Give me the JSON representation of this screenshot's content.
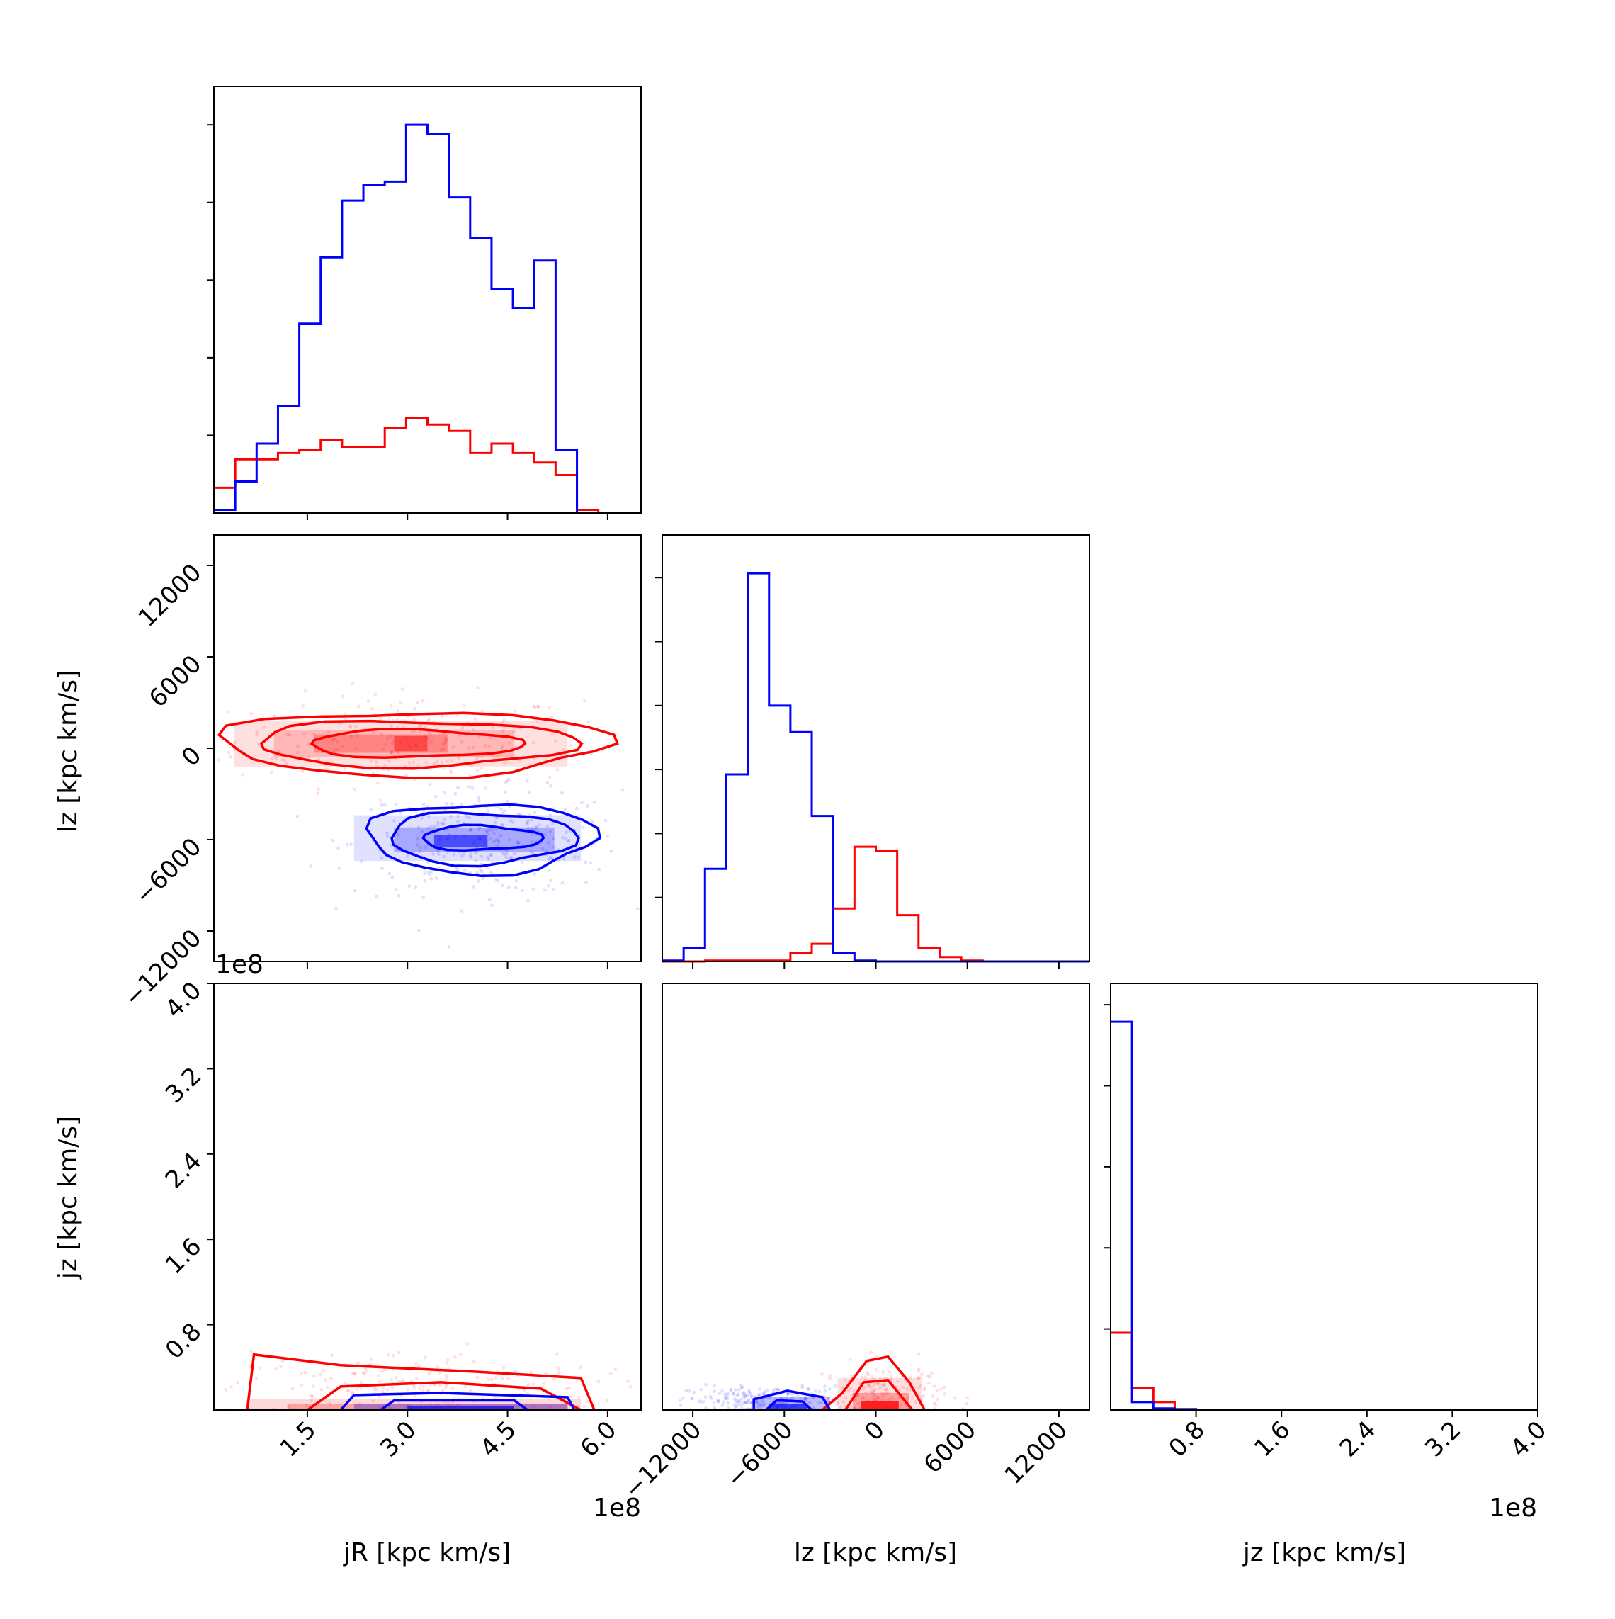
{
  "figure": {
    "axis_labels": {
      "jR": "jR [kpc km/s]",
      "lz": "lz [kpc km/s]",
      "jz": "jz [kpc km/s]"
    },
    "offset_text": "1e8",
    "ticks": {
      "jR": [
        "1.5",
        "3.0",
        "4.5",
        "6.0"
      ],
      "lz": [
        "−12000",
        "−6000",
        "0",
        "6000",
        "12000"
      ],
      "jz": [
        "0.8",
        "1.6",
        "2.4",
        "3.2",
        "4.0"
      ]
    }
  },
  "colors": {
    "blue": "#0000ff",
    "red": "#ff0000"
  },
  "chart_data": {
    "type": "corner",
    "variables": [
      "jR [kpc km/s]",
      "lz [kpc km/s]",
      "jz [kpc km/s]"
    ],
    "ranges": {
      "jR": [
        10000000.0,
        650000000.0
      ],
      "lz": [
        -14000,
        14000
      ],
      "jz": [
        0,
        400000000.0
      ]
    },
    "series": [
      {
        "color": "#0000ff",
        "hist_jR": {
          "edges": [
            10000000.0,
            42000000.0,
            74000000.0,
            106000000.0,
            138000000.0,
            170000000.0,
            202000000.0,
            234000000.0,
            266000000.0,
            298000000.0,
            330000000.0,
            362000000.0,
            394000000.0,
            426000000.0,
            458000000.0,
            490000000.0,
            522000000.0,
            554000000.0,
            586000000.0,
            618000000.0,
            650000000.0
          ],
          "counts": [
            0.02,
            0.2,
            0.44,
            0.68,
            1.2,
            1.62,
            1.98,
            2.08,
            2.1,
            2.46,
            2.4,
            2.0,
            1.74,
            1.42,
            1.3,
            1.6,
            0.4,
            0.0,
            0.0,
            0.0
          ]
        },
        "hist_lz": {
          "edges": [
            -14000,
            -12600,
            -11200,
            -9800,
            -8400,
            -7000,
            -5600,
            -4200,
            -2800,
            -1400,
            0,
            1400,
            2800,
            4200,
            5600,
            7000,
            8400,
            9800,
            11200,
            12600,
            14000
          ],
          "counts": [
            0.02,
            0.3,
            2.1,
            4.24,
            8.8,
            5.8,
            5.2,
            3.3,
            0.2,
            0.02,
            0,
            0,
            0,
            0,
            0,
            0,
            0,
            0,
            0,
            0
          ]
        },
        "hist_jz": {
          "edges": [
            0,
            20000000.0,
            40000000.0,
            60000000.0,
            80000000.0,
            100000000.0,
            120000000.0,
            140000000.0,
            160000000.0,
            180000000.0,
            200000000.0,
            220000000.0,
            240000000.0,
            260000000.0,
            280000000.0,
            300000000.0,
            320000000.0,
            340000000.0,
            360000000.0,
            380000000.0,
            400000000.0
          ],
          "counts": [
            9.8,
            0.2,
            0.04,
            0.02,
            0,
            0,
            0,
            0,
            0,
            0,
            0,
            0,
            0,
            0,
            0,
            0,
            0,
            0,
            0,
            0
          ]
        }
      },
      {
        "color": "#ff0000",
        "hist_jR": {
          "edges": [
            10000000.0,
            42000000.0,
            74000000.0,
            106000000.0,
            138000000.0,
            170000000.0,
            202000000.0,
            234000000.0,
            266000000.0,
            298000000.0,
            330000000.0,
            362000000.0,
            394000000.0,
            426000000.0,
            458000000.0,
            490000000.0,
            522000000.0,
            554000000.0,
            586000000.0,
            618000000.0,
            650000000.0
          ],
          "counts": [
            0.16,
            0.34,
            0.34,
            0.38,
            0.4,
            0.46,
            0.42,
            0.42,
            0.54,
            0.6,
            0.56,
            0.52,
            0.38,
            0.44,
            0.38,
            0.32,
            0.24,
            0.02,
            0.0,
            0.0
          ]
        },
        "hist_lz": {
          "edges": [
            -14000,
            -12600,
            -11200,
            -9800,
            -8400,
            -7000,
            -5600,
            -4200,
            -2800,
            -1400,
            0,
            1400,
            2800,
            4200,
            5600,
            7000,
            8400,
            9800,
            11200,
            12600,
            14000
          ],
          "counts": [
            0,
            0,
            0.02,
            0.02,
            0.02,
            0.02,
            0.2,
            0.4,
            1.2,
            2.6,
            2.5,
            1.05,
            0.3,
            0.1,
            0.02,
            0,
            0,
            0,
            0,
            0
          ]
        },
        "hist_jz": {
          "edges": [
            0,
            20000000.0,
            40000000.0,
            60000000.0,
            80000000.0,
            100000000.0,
            120000000.0,
            140000000.0,
            160000000.0,
            180000000.0,
            200000000.0,
            220000000.0,
            240000000.0,
            260000000.0,
            280000000.0,
            300000000.0,
            320000000.0,
            340000000.0,
            360000000.0,
            380000000.0,
            400000000.0
          ],
          "counts": [
            1.95,
            0.55,
            0.2,
            0.02,
            0,
            0,
            0,
            0,
            0,
            0,
            0,
            0,
            0,
            0,
            0,
            0,
            0,
            0,
            0,
            0
          ]
        }
      }
    ]
  }
}
